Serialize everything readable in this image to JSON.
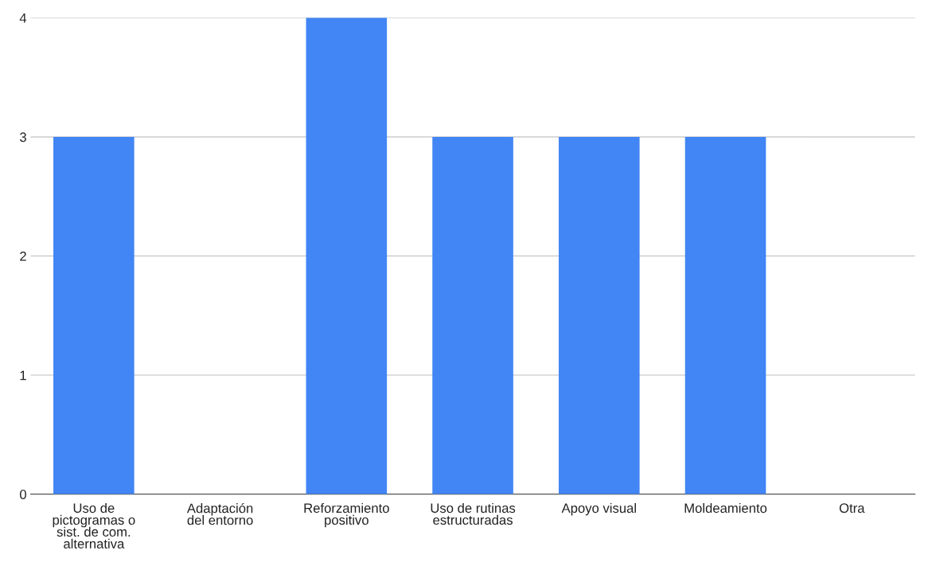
{
  "chart_data": {
    "type": "bar",
    "categories": [
      "Uso de\npictogramas o\nsist. de com.\nalternativa",
      "Adaptación\ndel entorno",
      "Reforzamiento\npositivo",
      "Uso de rutinas\nestructuradas",
      "Apoyo visual",
      "Moldeamiento",
      "Otra"
    ],
    "values": [
      3,
      0,
      4,
      3,
      3,
      3,
      0
    ],
    "color": "#4285f4",
    "ylim": [
      0,
      4
    ],
    "yticks": [
      0,
      1,
      2,
      3,
      4
    ],
    "grid": "y"
  }
}
